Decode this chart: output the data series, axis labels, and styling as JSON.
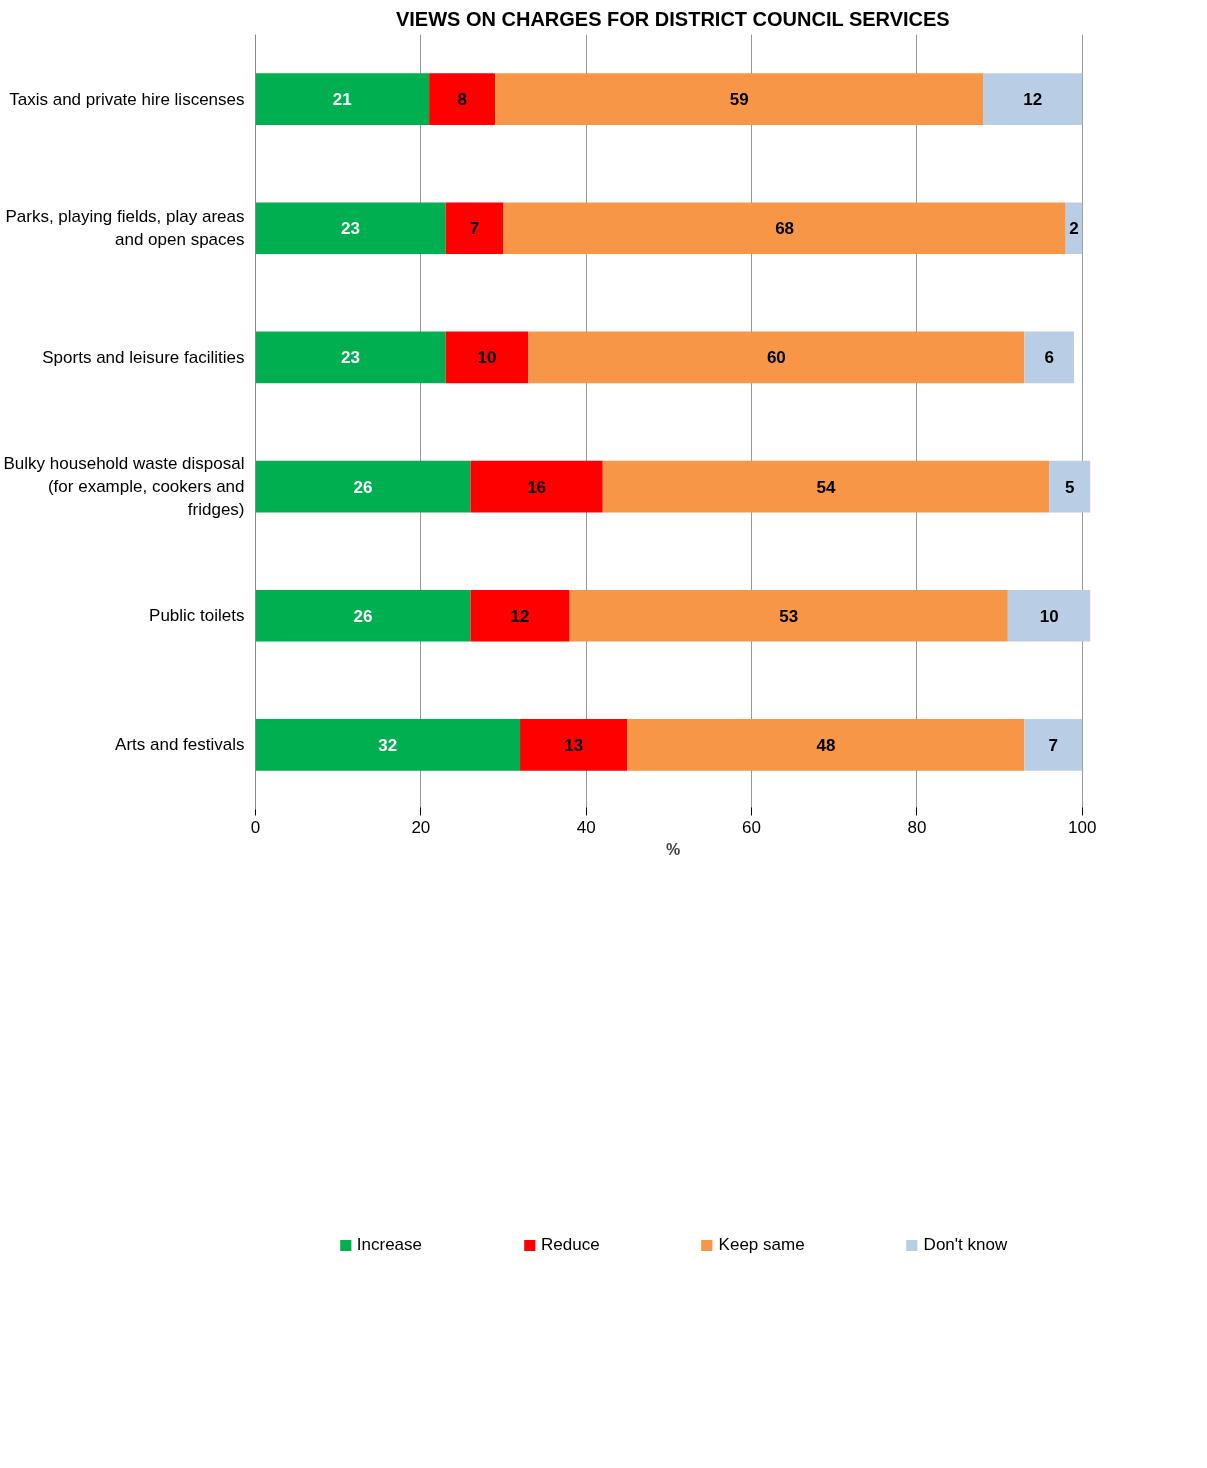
{
  "chart_data": {
    "type": "bar",
    "orientation": "horizontal",
    "stacked": true,
    "title": "VIEWS ON CHARGES FOR DISTRICT COUNCIL SERVICES",
    "xlabel": "%",
    "categories": [
      "Taxis and private hire liscenses",
      "Parks, playing fields, play areas and open spaces",
      "Sports and leisure facilities",
      "Bulky household waste disposal (for example, cookers and fridges)",
      "Public toilets",
      "Arts and festivals"
    ],
    "series": [
      {
        "name": "Increase",
        "color": "#00b050",
        "values": [
          21,
          23,
          23,
          26,
          26,
          32
        ]
      },
      {
        "name": "Reduce",
        "color": "#ff0000",
        "values": [
          8,
          7,
          10,
          16,
          12,
          13
        ]
      },
      {
        "name": "Keep same",
        "color": "#f79646",
        "values": [
          59,
          68,
          60,
          54,
          53,
          48
        ]
      },
      {
        "name": "Don't know",
        "color": "#b9cde5",
        "values": [
          12,
          2,
          6,
          5,
          10,
          7
        ]
      }
    ],
    "xlim": [
      0,
      101
    ],
    "xticks": [
      0,
      20,
      40,
      60,
      80,
      100
    ],
    "grid": "x",
    "legend": "bottom",
    "data_labels": true
  }
}
